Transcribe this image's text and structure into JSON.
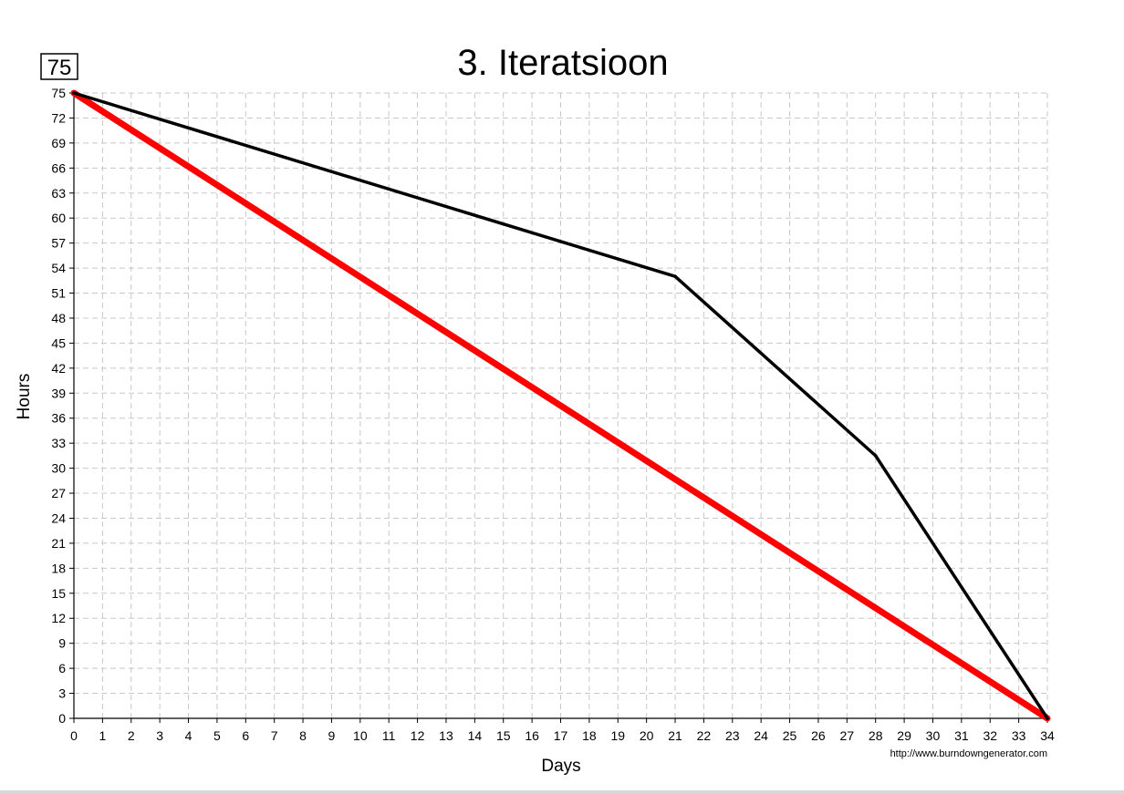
{
  "chart_data": {
    "type": "line",
    "title": "3. Iteratsioon",
    "total_label": "75",
    "xlabel": "Days",
    "ylabel": "Hours",
    "credit": "http://www.burndowngenerator.com",
    "xlim": [
      0,
      34
    ],
    "ylim": [
      0,
      75
    ],
    "x_ticks": [
      0,
      1,
      2,
      3,
      4,
      5,
      6,
      7,
      8,
      9,
      10,
      11,
      12,
      13,
      14,
      15,
      16,
      17,
      18,
      19,
      20,
      21,
      22,
      23,
      24,
      25,
      26,
      27,
      28,
      29,
      30,
      31,
      32,
      33,
      34
    ],
    "y_ticks": [
      0,
      3,
      6,
      9,
      12,
      15,
      18,
      21,
      24,
      27,
      30,
      33,
      36,
      39,
      42,
      45,
      48,
      51,
      54,
      57,
      60,
      63,
      66,
      69,
      72,
      75
    ],
    "grid": true,
    "series": [
      {
        "role": "ideal",
        "color": "#ff0000",
        "points": [
          [
            0,
            75
          ],
          [
            34,
            0
          ]
        ]
      },
      {
        "role": "actual",
        "color": "#000000",
        "points": [
          [
            0,
            75
          ],
          [
            21,
            53
          ],
          [
            28,
            31.5
          ],
          [
            34,
            0
          ]
        ]
      }
    ]
  }
}
